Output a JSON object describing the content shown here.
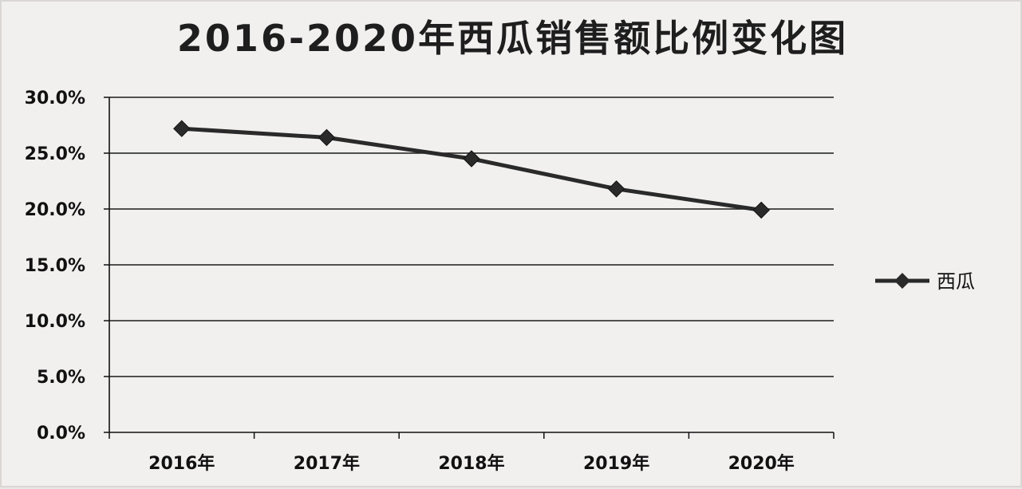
{
  "chart_data": {
    "type": "line",
    "title": "2016-2020年西瓜销售额比例变化图",
    "categories": [
      "2016年",
      "2017年",
      "2018年",
      "2019年",
      "2020年"
    ],
    "series": [
      {
        "name": "西瓜",
        "values": [
          27.2,
          26.4,
          24.5,
          21.8,
          19.9
        ]
      }
    ],
    "ylim": [
      0,
      30
    ],
    "y_ticks": [
      "0.0%",
      "5.0%",
      "10.0%",
      "15.0%",
      "20.0%",
      "25.0%",
      "30.0%"
    ],
    "y_tick_values": [
      0,
      5,
      10,
      15,
      20,
      25,
      30
    ],
    "grid": true,
    "legend_position": "right",
    "colors": {
      "line": "#2a2a2a",
      "marker": "#2a2a2a",
      "grid": "#1a1a1a",
      "background": "#f2f0ef"
    }
  }
}
